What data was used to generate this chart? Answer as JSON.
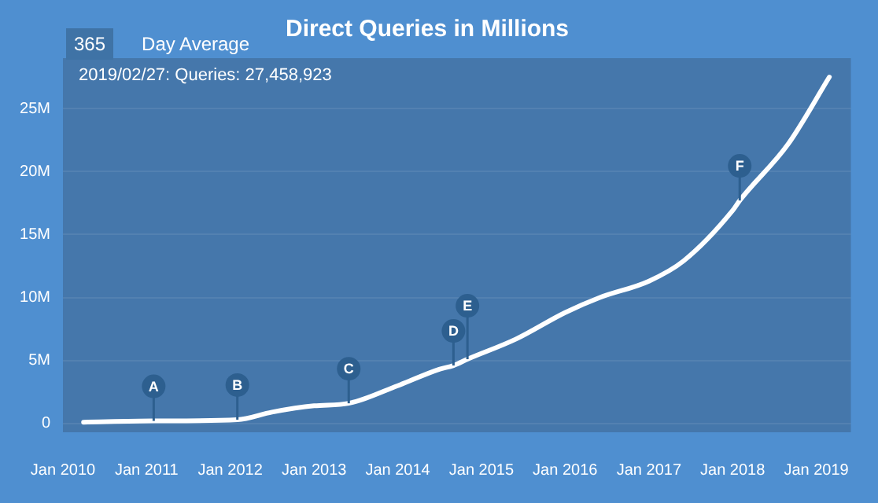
{
  "chart_data": {
    "type": "line",
    "title": "Direct Queries in Millions",
    "x": [
      "2010-04",
      "2011-02",
      "2012-02",
      "2012-07",
      "2013-01",
      "2013-06",
      "2014-01",
      "2014-07",
      "2014-09",
      "2014-11",
      "2015-06",
      "2016-01",
      "2016-06",
      "2017-01",
      "2017-06",
      "2018-01",
      "2018-02",
      "2018-09",
      "2019-02-27"
    ],
    "series": [
      {
        "color": "#ffffff",
        "values": [
          0.1,
          0.2,
          0.3,
          0.9,
          1.4,
          1.6,
          3.0,
          4.3,
          4.6,
          5.1,
          6.7,
          8.8,
          10.0,
          11.3,
          12.9,
          16.9,
          17.7,
          22.2,
          27.5
        ]
      }
    ],
    "xlim": [
      "2010-01",
      "2019-06"
    ],
    "xticks": [
      {
        "value": "2010-01",
        "label": "Jan 2010"
      },
      {
        "value": "2011-01",
        "label": "Jan 2011"
      },
      {
        "value": "2012-01",
        "label": "Jan 2012"
      },
      {
        "value": "2013-01",
        "label": "Jan 2013"
      },
      {
        "value": "2014-01",
        "label": "Jan 2014"
      },
      {
        "value": "2015-01",
        "label": "Jan 2015"
      },
      {
        "value": "2016-01",
        "label": "Jan 2016"
      },
      {
        "value": "2017-01",
        "label": "Jan 2017"
      },
      {
        "value": "2018-01",
        "label": "Jan 2018"
      },
      {
        "value": "2019-01",
        "label": "Jan 2019"
      }
    ],
    "ylim": [
      -0.7,
      29
    ],
    "yticks": [
      0,
      {
        "value": 5,
        "label": "5M"
      },
      {
        "value": 10,
        "label": "10M"
      },
      {
        "value": 15,
        "label": "15M"
      },
      {
        "value": 20,
        "label": "20M"
      },
      {
        "value": 25,
        "label": "25M"
      }
    ],
    "grid": "y",
    "legend": false,
    "marker": "none",
    "line_style": "solid",
    "annotations": [
      "365",
      "Day Average",
      "2019/02/27: Queries: 27,458,923",
      {
        "text": "A",
        "x": "2011-02",
        "y": 0.2
      },
      {
        "text": "B",
        "x": "2012-02",
        "y": 0.3
      },
      {
        "text": "C",
        "x": "2013-06",
        "y": 1.6
      },
      {
        "text": "D",
        "x": "2014-09",
        "y": 4.6
      },
      {
        "text": "E",
        "x": "2014-11",
        "y": 5.1
      },
      {
        "text": "F",
        "x": "2018-02",
        "y": 17.7
      }
    ]
  }
}
